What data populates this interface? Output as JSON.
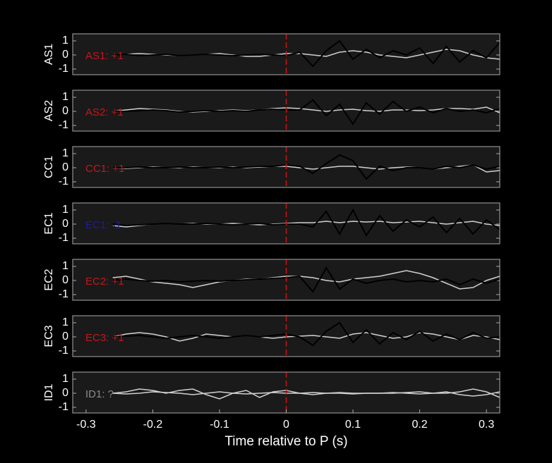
{
  "chart_data": [
    {
      "type": "line",
      "ylabel": "AS1",
      "annotation": "AS1: +1",
      "annotation_color": "#c4161c",
      "xlim": [
        -0.32,
        0.32
      ],
      "ylim": [
        -1.4,
        1.5
      ],
      "yticks": [
        -1,
        0,
        1
      ],
      "vline": 0,
      "vline_color": "#d01010",
      "x": [
        -0.26,
        -0.24,
        -0.22,
        -0.2,
        -0.18,
        -0.16,
        -0.14,
        -0.12,
        -0.1,
        -0.08,
        -0.06,
        -0.04,
        -0.02,
        0,
        0.02,
        0.04,
        0.06,
        0.08,
        0.1,
        0.12,
        0.14,
        0.16,
        0.18,
        0.2,
        0.22,
        0.24,
        0.26,
        0.28,
        0.3,
        0.32
      ],
      "series": [
        {
          "color": "#d0d0d0",
          "values": [
            0,
            0.05,
            0.1,
            0.05,
            0,
            -0.05,
            0,
            0.05,
            0.1,
            0,
            -0.1,
            -0.1,
            0,
            0.1,
            0.1,
            0,
            -0.1,
            0.2,
            0.3,
            0.2,
            0,
            -0.1,
            -0.2,
            0,
            0.2,
            0.4,
            0.3,
            0,
            -0.2,
            -0.3
          ]
        },
        {
          "color": "#000000",
          "values": [
            0,
            0.05,
            -0.05,
            0,
            0.05,
            -0.05,
            0,
            0.05,
            0,
            -0.05,
            0,
            0.05,
            0,
            -0.05,
            0.2,
            -0.8,
            0.3,
            1.0,
            -0.3,
            0.4,
            -0.2,
            0.3,
            0,
            0.5,
            -0.6,
            0.6,
            -0.5,
            0.3,
            -0.2,
            0.9
          ]
        }
      ]
    },
    {
      "type": "line",
      "ylabel": "AS2",
      "annotation": "AS2: +1",
      "annotation_color": "#c4161c",
      "xlim": [
        -0.32,
        0.32
      ],
      "ylim": [
        -1.4,
        1.5
      ],
      "yticks": [
        -1,
        0,
        1
      ],
      "vline": 0,
      "vline_color": "#d01010",
      "x": [
        -0.26,
        -0.24,
        -0.22,
        -0.2,
        -0.18,
        -0.16,
        -0.14,
        -0.12,
        -0.1,
        -0.08,
        -0.06,
        -0.04,
        -0.02,
        0,
        0.02,
        0.04,
        0.06,
        0.08,
        0.1,
        0.12,
        0.14,
        0.16,
        0.18,
        0.2,
        0.22,
        0.24,
        0.26,
        0.28,
        0.3,
        0.32
      ],
      "series": [
        {
          "color": "#d0d0d0",
          "values": [
            0,
            0.1,
            0.2,
            0.15,
            0.1,
            0,
            -0.05,
            0,
            0.05,
            0.1,
            0.05,
            0.1,
            0.2,
            0.25,
            0.2,
            0.1,
            0,
            0.1,
            0.15,
            0.05,
            0,
            0.1,
            0.1,
            0.05,
            0.1,
            0.2,
            0.2,
            0.15,
            0.3,
            -0.1
          ]
        },
        {
          "color": "#000000",
          "values": [
            0,
            0,
            0.05,
            0.1,
            0.05,
            -0.05,
            0,
            0.05,
            0,
            0.05,
            0,
            0.1,
            0.15,
            0.1,
            0.1,
            0.8,
            -0.3,
            0.5,
            -0.9,
            0.6,
            -0.2,
            0.7,
            0,
            0.3,
            -0.1,
            0.2,
            0,
            0.1,
            -0.1,
            0.2
          ]
        }
      ]
    },
    {
      "type": "line",
      "ylabel": "CC1",
      "annotation": "CC1: +1",
      "annotation_color": "#c4161c",
      "xlim": [
        -0.32,
        0.32
      ],
      "ylim": [
        -1.4,
        1.5
      ],
      "yticks": [
        -1,
        0,
        1
      ],
      "vline": 0,
      "vline_color": "#d01010",
      "x": [
        -0.26,
        -0.24,
        -0.22,
        -0.2,
        -0.18,
        -0.16,
        -0.14,
        -0.12,
        -0.1,
        -0.08,
        -0.06,
        -0.04,
        -0.02,
        0,
        0.02,
        0.04,
        0.06,
        0.08,
        0.1,
        0.12,
        0.14,
        0.16,
        0.18,
        0.2,
        0.22,
        0.24,
        0.26,
        0.28,
        0.3,
        0.32
      ],
      "series": [
        {
          "color": "#d0d0d0",
          "values": [
            0,
            -0.05,
            0,
            0.05,
            0,
            0,
            0.05,
            0,
            0,
            0.05,
            0,
            0.05,
            0.1,
            0.1,
            0,
            -0.1,
            0,
            0.1,
            0.1,
            0,
            -0.1,
            0,
            0.05,
            0,
            -0.1,
            0,
            0.1,
            0.2,
            -0.3,
            -0.2
          ]
        },
        {
          "color": "#000000",
          "values": [
            0,
            0,
            0.05,
            0,
            0,
            0.05,
            0,
            0,
            0.05,
            0,
            0.05,
            0.1,
            0.1,
            0.2,
            0.1,
            -0.4,
            0.3,
            0.9,
            0.5,
            -0.8,
            0.1,
            -0.2,
            0,
            0,
            -0.1,
            0.1,
            0,
            0.2,
            -0.1,
            0.1
          ]
        }
      ]
    },
    {
      "type": "line",
      "ylabel": "EC1",
      "annotation": "EC1: -1",
      "annotation_color": "#1c1ca0",
      "xlim": [
        -0.32,
        0.32
      ],
      "ylim": [
        -1.4,
        1.5
      ],
      "yticks": [
        -1,
        0,
        1
      ],
      "vline": 0,
      "vline_color": "#d01010",
      "x": [
        -0.26,
        -0.24,
        -0.22,
        -0.2,
        -0.18,
        -0.16,
        -0.14,
        -0.12,
        -0.1,
        -0.08,
        -0.06,
        -0.04,
        -0.02,
        0,
        0.02,
        0.04,
        0.06,
        0.08,
        0.1,
        0.12,
        0.14,
        0.16,
        0.18,
        0.2,
        0.22,
        0.24,
        0.26,
        0.28,
        0.3,
        0.32
      ],
      "series": [
        {
          "color": "#d0d0d0",
          "values": [
            -0.1,
            -0.2,
            -0.1,
            0,
            0.05,
            0,
            0.05,
            0,
            0,
            0.05,
            0,
            -0.05,
            0,
            0.05,
            0.1,
            0.1,
            0.2,
            0.1,
            0.2,
            0.15,
            0.2,
            0.1,
            0.15,
            0.2,
            0.1,
            0,
            0.1,
            0.2,
            0,
            -0.1
          ]
        },
        {
          "color": "#000000",
          "values": [
            0,
            -0.1,
            -0.05,
            0,
            0.05,
            0,
            0,
            0.05,
            0,
            -0.05,
            0,
            0.05,
            -0.05,
            0,
            0,
            -0.2,
            0.9,
            -0.7,
            1.0,
            -0.8,
            0.6,
            -0.5,
            0.3,
            -0.2,
            0.5,
            -0.6,
            0.4,
            -0.7,
            0.3,
            -0.4
          ]
        }
      ]
    },
    {
      "type": "line",
      "ylabel": "EC2",
      "annotation": "EC2: +1",
      "annotation_color": "#c4161c",
      "xlim": [
        -0.32,
        0.32
      ],
      "ylim": [
        -1.4,
        1.5
      ],
      "yticks": [
        -1,
        0,
        1
      ],
      "vline": 0,
      "vline_color": "#d01010",
      "x": [
        -0.26,
        -0.24,
        -0.22,
        -0.2,
        -0.18,
        -0.16,
        -0.14,
        -0.12,
        -0.1,
        -0.08,
        -0.06,
        -0.04,
        -0.02,
        0,
        0.02,
        0.04,
        0.06,
        0.08,
        0.1,
        0.12,
        0.14,
        0.16,
        0.18,
        0.2,
        0.22,
        0.24,
        0.26,
        0.28,
        0.3,
        0.32
      ],
      "series": [
        {
          "color": "#d0d0d0",
          "values": [
            0.2,
            0.3,
            0.1,
            -0.1,
            -0.2,
            -0.3,
            -0.5,
            -0.3,
            -0.1,
            0,
            0.1,
            0.1,
            0.2,
            0.3,
            0.3,
            0.2,
            0,
            -0.1,
            0.1,
            0.2,
            0.3,
            0.5,
            0.7,
            0.5,
            0.2,
            -0.2,
            -0.6,
            -0.5,
            0,
            0.3
          ]
        },
        {
          "color": "#000000",
          "values": [
            0,
            0.1,
            0,
            -0.05,
            0,
            -0.1,
            -0.05,
            0,
            -0.05,
            0,
            0.05,
            0.1,
            0.15,
            0.2,
            0.3,
            -0.8,
            0.9,
            -0.6,
            0.1,
            -0.2,
            0,
            0.1,
            -0.1,
            0,
            -0.1,
            0.1,
            -0.3,
            0.1,
            -0.2,
            0.1
          ]
        }
      ]
    },
    {
      "type": "line",
      "ylabel": "EC3",
      "annotation": "EC3: +1",
      "annotation_color": "#c4161c",
      "xlim": [
        -0.32,
        0.32
      ],
      "ylim": [
        -1.4,
        1.5
      ],
      "yticks": [
        -1,
        0,
        1
      ],
      "vline": 0,
      "vline_color": "#d01010",
      "x": [
        -0.26,
        -0.24,
        -0.22,
        -0.2,
        -0.18,
        -0.16,
        -0.14,
        -0.12,
        -0.1,
        -0.08,
        -0.06,
        -0.04,
        -0.02,
        0,
        0.02,
        0.04,
        0.06,
        0.08,
        0.1,
        0.12,
        0.14,
        0.16,
        0.18,
        0.2,
        0.22,
        0.24,
        0.26,
        0.28,
        0.3,
        0.32
      ],
      "series": [
        {
          "color": "#d0d0d0",
          "values": [
            0,
            0.2,
            0.3,
            0.2,
            0,
            -0.3,
            -0.1,
            0.2,
            0.1,
            0,
            0.1,
            0,
            -0.1,
            0,
            0.05,
            0.1,
            0,
            -0.1,
            0.2,
            0.3,
            0.1,
            -0.1,
            0,
            0.3,
            0.2,
            0,
            -0.2,
            0.1,
            0,
            -0.2
          ]
        },
        {
          "color": "#000000",
          "values": [
            0,
            0.05,
            0.1,
            0,
            -0.1,
            0,
            0.1,
            0,
            -0.1,
            0,
            0.1,
            0,
            0.1,
            0.2,
            0,
            -0.6,
            0.4,
            1.0,
            -0.4,
            0.5,
            -0.5,
            0.3,
            -0.2,
            0.4,
            -0.3,
            0.2,
            -0.2,
            0.3,
            -0.1,
            0
          ]
        }
      ]
    },
    {
      "type": "line",
      "ylabel": "ID1",
      "annotation": "ID1: ?",
      "annotation_color": "#8a8a8a",
      "xlim": [
        -0.32,
        0.32
      ],
      "ylim": [
        -1.4,
        1.5
      ],
      "yticks": [
        -1,
        0,
        1
      ],
      "vline": 0,
      "vline_color": "#d01010",
      "x": [
        -0.26,
        -0.24,
        -0.22,
        -0.2,
        -0.18,
        -0.16,
        -0.14,
        -0.12,
        -0.1,
        -0.08,
        -0.06,
        -0.04,
        -0.02,
        0,
        0.02,
        0.04,
        0.06,
        0.08,
        0.1,
        0.12,
        0.14,
        0.16,
        0.18,
        0.2,
        0.22,
        0.24,
        0.26,
        0.28,
        0.3,
        0.32
      ],
      "xticks": [
        -0.3,
        -0.2,
        -0.1,
        0,
        0.1,
        0.2,
        0.3
      ],
      "xlabel": "Time relative to P (s)",
      "series": [
        {
          "color": "#d0d0d0",
          "values": [
            0,
            0.1,
            0.3,
            0.2,
            0,
            0.2,
            0.3,
            -0.1,
            -0.4,
            0,
            0.2,
            -0.3,
            0.1,
            0.2,
            0,
            -0.1,
            0,
            0.05,
            0,
            0,
            0,
            0,
            0.05,
            0.1,
            0,
            0,
            0.1,
            0.3,
            0.1,
            -0.3
          ]
        },
        {
          "color": "#d0d0d0",
          "values": [
            0,
            -0.05,
            0,
            0.1,
            0.05,
            0,
            -0.1,
            0,
            0.1,
            0,
            -0.05,
            0,
            0.05,
            0,
            0,
            0.05,
            0,
            0,
            -0.05,
            0,
            0,
            0.05,
            0,
            -0.05,
            0,
            0.1,
            -0.1,
            -0.2,
            -0.1,
            0.1
          ]
        }
      ]
    }
  ]
}
